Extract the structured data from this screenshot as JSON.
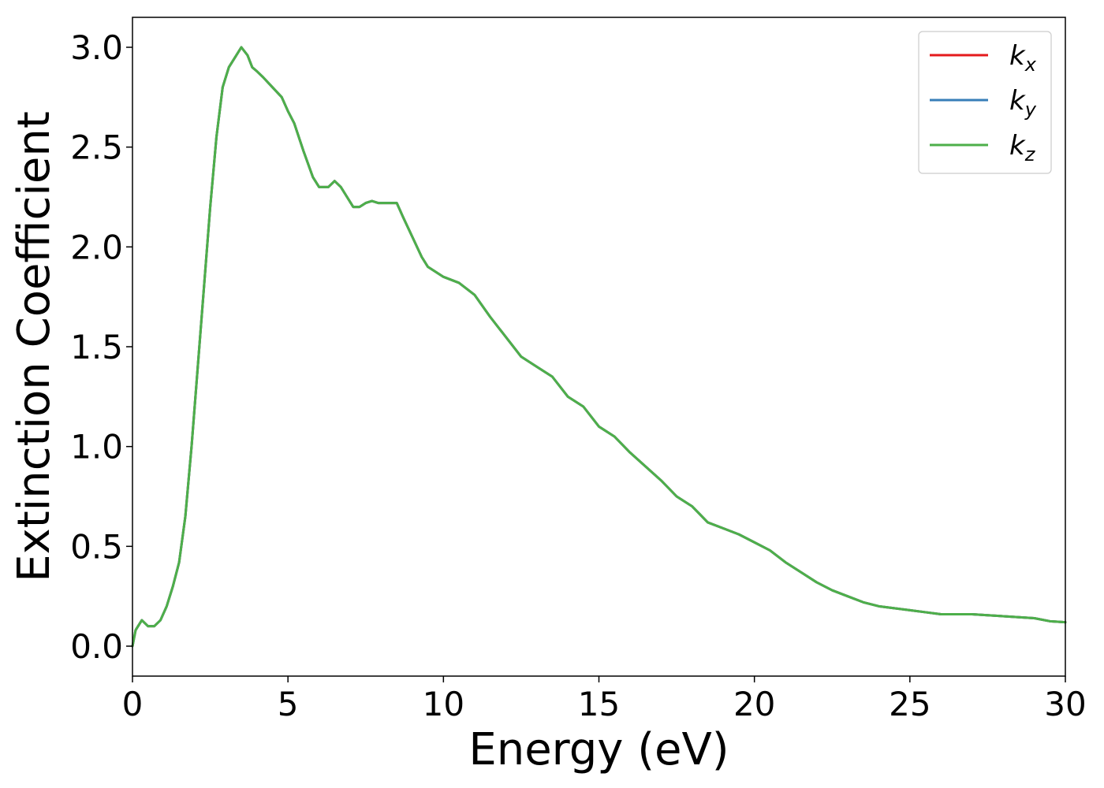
{
  "chart_data": {
    "type": "line",
    "title": "",
    "xlabel": "Energy (eV)",
    "ylabel": "Extinction Coefficient",
    "xlim": [
      0,
      30
    ],
    "ylim": [
      -0.15,
      3.15
    ],
    "xticks": [
      0,
      5,
      10,
      15,
      20,
      25,
      30
    ],
    "xtick_labels": [
      "0",
      "5",
      "10",
      "15",
      "20",
      "25",
      "30"
    ],
    "yticks": [
      0.0,
      0.5,
      1.0,
      1.5,
      2.0,
      2.5,
      3.0
    ],
    "ytick_labels": [
      "0.0",
      "0.5",
      "1.0",
      "1.5",
      "2.0",
      "2.5",
      "3.0"
    ],
    "grid": false,
    "legend_position": "top-right",
    "x": [
      0,
      0.1,
      0.3,
      0.5,
      0.7,
      0.9,
      1.1,
      1.3,
      1.5,
      1.7,
      1.9,
      2.1,
      2.3,
      2.5,
      2.7,
      2.9,
      3.1,
      3.3,
      3.5,
      3.7,
      3.85,
      4.0,
      4.2,
      4.5,
      4.8,
      5.0,
      5.2,
      5.5,
      5.8,
      6.0,
      6.3,
      6.5,
      6.7,
      6.9,
      7.1,
      7.3,
      7.5,
      7.7,
      7.9,
      8.2,
      8.5,
      8.7,
      9.0,
      9.3,
      9.5,
      10.0,
      10.5,
      11.0,
      11.5,
      12.0,
      12.5,
      13.0,
      13.5,
      14.0,
      14.5,
      15.0,
      15.5,
      16.0,
      16.5,
      17.0,
      17.5,
      18.0,
      18.5,
      19.0,
      19.5,
      20.0,
      20.5,
      21.0,
      21.5,
      22.0,
      22.5,
      23.0,
      23.5,
      24.0,
      24.5,
      25.0,
      25.5,
      26.0,
      26.5,
      27.0,
      27.5,
      28.0,
      28.5,
      29.0,
      29.5,
      30.0
    ],
    "series": [
      {
        "name": "k_x",
        "label_base": "k",
        "label_sub": "x",
        "color": "#e41a1c",
        "y": [
          0.0,
          0.08,
          0.13,
          0.1,
          0.1,
          0.13,
          0.2,
          0.3,
          0.42,
          0.65,
          1.0,
          1.4,
          1.8,
          2.2,
          2.55,
          2.8,
          2.9,
          2.95,
          3.0,
          2.96,
          2.9,
          2.88,
          2.85,
          2.8,
          2.75,
          2.68,
          2.62,
          2.48,
          2.35,
          2.3,
          2.3,
          2.33,
          2.3,
          2.25,
          2.2,
          2.2,
          2.22,
          2.23,
          2.22,
          2.22,
          2.22,
          2.15,
          2.05,
          1.95,
          1.9,
          1.85,
          1.82,
          1.76,
          1.65,
          1.55,
          1.45,
          1.4,
          1.35,
          1.25,
          1.2,
          1.1,
          1.05,
          0.97,
          0.9,
          0.83,
          0.75,
          0.7,
          0.62,
          0.59,
          0.56,
          0.52,
          0.48,
          0.42,
          0.37,
          0.32,
          0.28,
          0.25,
          0.22,
          0.2,
          0.19,
          0.18,
          0.17,
          0.16,
          0.16,
          0.16,
          0.155,
          0.15,
          0.145,
          0.14,
          0.125,
          0.12
        ]
      },
      {
        "name": "k_y",
        "label_base": "k",
        "label_sub": "y",
        "color": "#377eb8",
        "y": [
          0.0,
          0.08,
          0.13,
          0.1,
          0.1,
          0.13,
          0.2,
          0.3,
          0.42,
          0.65,
          1.0,
          1.4,
          1.8,
          2.2,
          2.55,
          2.8,
          2.9,
          2.95,
          3.0,
          2.96,
          2.9,
          2.88,
          2.85,
          2.8,
          2.75,
          2.68,
          2.62,
          2.48,
          2.35,
          2.3,
          2.3,
          2.33,
          2.3,
          2.25,
          2.2,
          2.2,
          2.22,
          2.23,
          2.22,
          2.22,
          2.22,
          2.15,
          2.05,
          1.95,
          1.9,
          1.85,
          1.82,
          1.76,
          1.65,
          1.55,
          1.45,
          1.4,
          1.35,
          1.25,
          1.2,
          1.1,
          1.05,
          0.97,
          0.9,
          0.83,
          0.75,
          0.7,
          0.62,
          0.59,
          0.56,
          0.52,
          0.48,
          0.42,
          0.37,
          0.32,
          0.28,
          0.25,
          0.22,
          0.2,
          0.19,
          0.18,
          0.17,
          0.16,
          0.16,
          0.16,
          0.155,
          0.15,
          0.145,
          0.14,
          0.125,
          0.12
        ]
      },
      {
        "name": "k_z",
        "label_base": "k",
        "label_sub": "z",
        "color": "#4daf4a",
        "y": [
          0.0,
          0.08,
          0.13,
          0.1,
          0.1,
          0.13,
          0.2,
          0.3,
          0.42,
          0.65,
          1.0,
          1.4,
          1.8,
          2.2,
          2.55,
          2.8,
          2.9,
          2.95,
          3.0,
          2.96,
          2.9,
          2.88,
          2.85,
          2.8,
          2.75,
          2.68,
          2.62,
          2.48,
          2.35,
          2.3,
          2.3,
          2.33,
          2.3,
          2.25,
          2.2,
          2.2,
          2.22,
          2.23,
          2.22,
          2.22,
          2.22,
          2.15,
          2.05,
          1.95,
          1.9,
          1.85,
          1.82,
          1.76,
          1.65,
          1.55,
          1.45,
          1.4,
          1.35,
          1.25,
          1.2,
          1.1,
          1.05,
          0.97,
          0.9,
          0.83,
          0.75,
          0.7,
          0.62,
          0.59,
          0.56,
          0.52,
          0.48,
          0.42,
          0.37,
          0.32,
          0.28,
          0.25,
          0.22,
          0.2,
          0.19,
          0.18,
          0.17,
          0.16,
          0.16,
          0.16,
          0.155,
          0.15,
          0.145,
          0.14,
          0.125,
          0.12
        ]
      }
    ]
  }
}
